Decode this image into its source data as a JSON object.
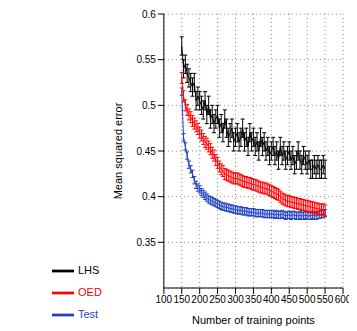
{
  "chart_data": {
    "type": "line",
    "x_label": "Number of training points",
    "y_label": "Mean squared error",
    "x": [
      150,
      155,
      160,
      165,
      170,
      175,
      180,
      185,
      190,
      195,
      200,
      205,
      210,
      215,
      220,
      225,
      230,
      235,
      240,
      245,
      250,
      255,
      260,
      265,
      270,
      275,
      280,
      285,
      290,
      295,
      300,
      305,
      310,
      315,
      320,
      325,
      330,
      335,
      340,
      345,
      350,
      355,
      360,
      365,
      370,
      375,
      380,
      385,
      390,
      395,
      400,
      405,
      410,
      415,
      420,
      425,
      430,
      435,
      440,
      445,
      450,
      455,
      460,
      465,
      470,
      475,
      480,
      485,
      490,
      495,
      500,
      505,
      510,
      515,
      520,
      525,
      530,
      535,
      540,
      545,
      550
    ],
    "series": [
      {
        "name": "Test",
        "color": "#2040c0",
        "error": 0.004,
        "values": [
          0.515,
          0.465,
          0.455,
          0.445,
          0.435,
          0.43,
          0.425,
          0.418,
          0.413,
          0.41,
          0.408,
          0.405,
          0.403,
          0.401,
          0.399,
          0.397,
          0.396,
          0.395,
          0.394,
          0.393,
          0.392,
          0.391,
          0.39,
          0.389,
          0.389,
          0.388,
          0.388,
          0.387,
          0.387,
          0.386,
          0.386,
          0.385,
          0.385,
          0.385,
          0.384,
          0.384,
          0.384,
          0.383,
          0.383,
          0.383,
          0.383,
          0.382,
          0.382,
          0.382,
          0.382,
          0.382,
          0.381,
          0.381,
          0.381,
          0.381,
          0.381,
          0.381,
          0.38,
          0.381,
          0.38,
          0.38,
          0.381,
          0.38,
          0.379,
          0.38,
          0.38,
          0.379,
          0.38,
          0.38,
          0.379,
          0.379,
          0.38,
          0.379,
          0.379,
          0.38,
          0.379,
          0.379,
          0.379,
          0.38,
          0.379,
          0.379,
          0.38,
          0.38,
          0.381,
          0.381,
          0.382
        ]
      },
      {
        "name": "LHS",
        "color": "#000000",
        "error": 0.01,
        "values": [
          0.565,
          0.54,
          0.545,
          0.535,
          0.53,
          0.525,
          0.52,
          0.525,
          0.505,
          0.51,
          0.505,
          0.5,
          0.495,
          0.505,
          0.49,
          0.5,
          0.485,
          0.49,
          0.48,
          0.485,
          0.49,
          0.475,
          0.48,
          0.47,
          0.485,
          0.475,
          0.465,
          0.47,
          0.475,
          0.46,
          0.465,
          0.47,
          0.46,
          0.465,
          0.475,
          0.46,
          0.465,
          0.455,
          0.47,
          0.46,
          0.465,
          0.455,
          0.46,
          0.45,
          0.465,
          0.455,
          0.46,
          0.45,
          0.455,
          0.445,
          0.45,
          0.455,
          0.445,
          0.45,
          0.44,
          0.455,
          0.445,
          0.45,
          0.44,
          0.445,
          0.45,
          0.44,
          0.445,
          0.435,
          0.44,
          0.45,
          0.44,
          0.435,
          0.445,
          0.44,
          0.435,
          0.44,
          0.43,
          0.43,
          0.435,
          0.43,
          0.435,
          0.43,
          0.43,
          0.435,
          0.43
        ]
      },
      {
        "name": "OED",
        "color": "#ff0000",
        "error": 0.006,
        "values": [
          0.53,
          0.51,
          0.5,
          0.495,
          0.49,
          0.487,
          0.483,
          0.48,
          0.477,
          0.474,
          0.47,
          0.467,
          0.463,
          0.46,
          0.458,
          0.455,
          0.452,
          0.448,
          0.445,
          0.44,
          0.437,
          0.433,
          0.43,
          0.428,
          0.425,
          0.424,
          0.423,
          0.422,
          0.421,
          0.42,
          0.42,
          0.42,
          0.419,
          0.418,
          0.417,
          0.416,
          0.416,
          0.415,
          0.415,
          0.414,
          0.413,
          0.413,
          0.412,
          0.411,
          0.41,
          0.41,
          0.409,
          0.409,
          0.408,
          0.407,
          0.406,
          0.405,
          0.404,
          0.403,
          0.402,
          0.4,
          0.398,
          0.397,
          0.396,
          0.395,
          0.395,
          0.394,
          0.394,
          0.393,
          0.393,
          0.392,
          0.392,
          0.391,
          0.391,
          0.39,
          0.39,
          0.389,
          0.389,
          0.388,
          0.388,
          0.387,
          0.387,
          0.386,
          0.386,
          0.386,
          0.385
        ]
      }
    ],
    "xlim": [
      100,
      600
    ],
    "xticks": [
      100,
      150,
      200,
      250,
      300,
      350,
      400,
      450,
      500,
      550,
      600
    ],
    "ylim": [
      0.3,
      0.6
    ],
    "yticks": [
      0.35,
      0.4,
      0.45,
      0.5,
      0.55,
      0.6
    ],
    "grid": true,
    "legend": "bottom"
  }
}
